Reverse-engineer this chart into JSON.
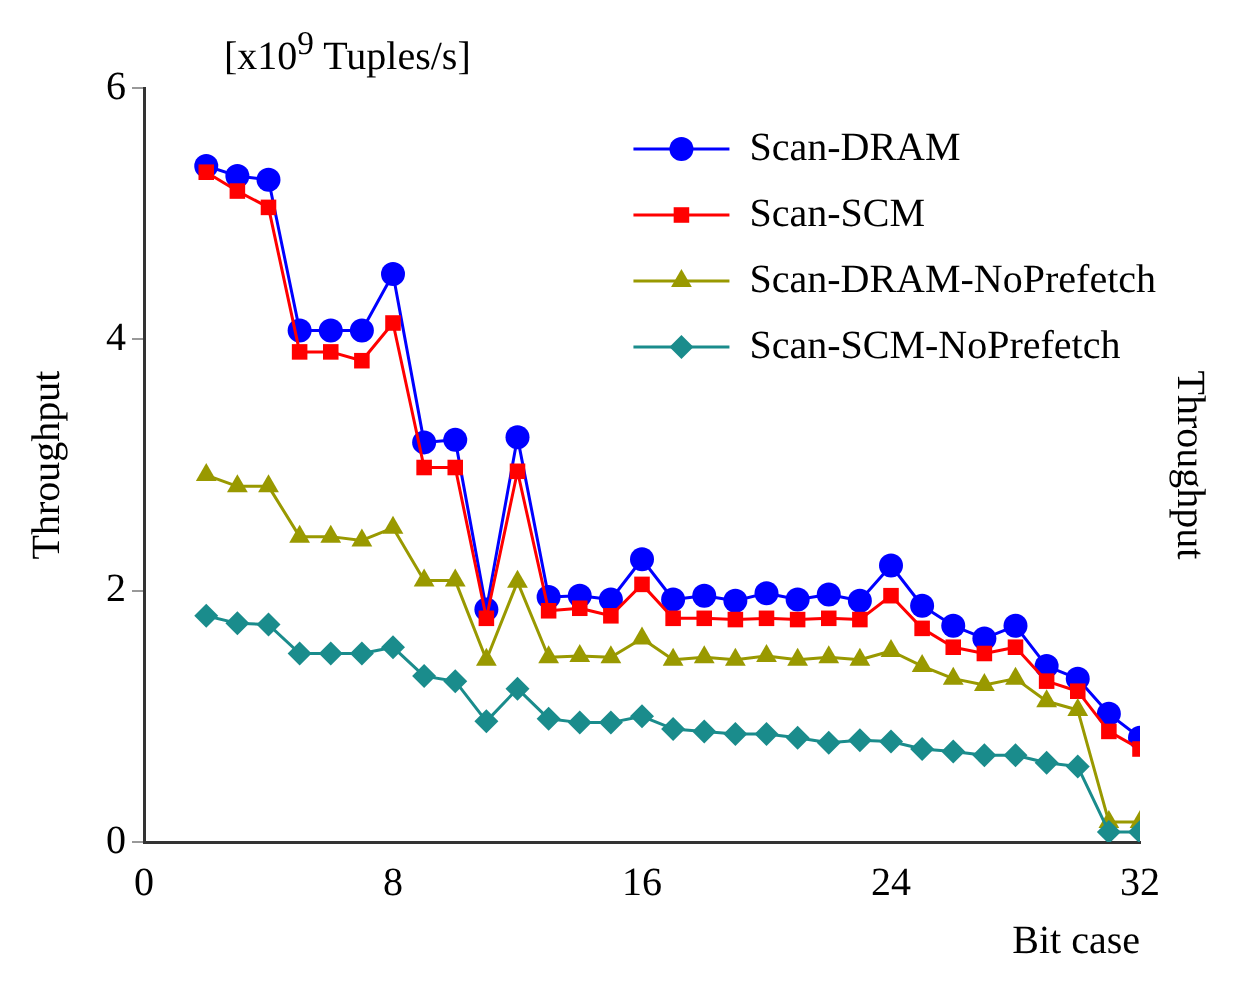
{
  "chart_data": {
    "type": "line",
    "xlabel": "Bit case",
    "ylabel": "Throughput",
    "y2label": "Throughput",
    "annotations": [
      "[x10$^{9}$ Tuples/s]"
    ],
    "x": [
      2,
      3,
      4,
      5,
      6,
      7,
      8,
      9,
      10,
      11,
      12,
      13,
      14,
      15,
      16,
      17,
      18,
      19,
      20,
      21,
      22,
      23,
      24,
      25,
      26,
      27,
      28,
      29,
      30,
      31,
      32
    ],
    "xlim": [
      0,
      32
    ],
    "xticks": [
      0,
      8,
      16,
      24,
      32
    ],
    "ylim": [
      0,
      6
    ],
    "yticks": [
      0,
      2,
      4,
      6
    ],
    "grid": false,
    "legend": "top right",
    "line_style": "solid",
    "series": [
      {
        "name": "Scan-DRAM",
        "color": "#0000ff",
        "marker": "circle",
        "values": [
          5.38,
          5.3,
          5.27,
          4.07,
          4.07,
          4.07,
          4.52,
          3.18,
          3.2,
          1.85,
          3.22,
          1.95,
          1.96,
          1.93,
          2.25,
          1.93,
          1.96,
          1.92,
          1.98,
          1.93,
          1.97,
          1.92,
          2.2,
          1.88,
          1.72,
          1.62,
          1.72,
          1.4,
          1.3,
          1.02,
          0.83
        ]
      },
      {
        "name": "Scan-SCM",
        "color": "#ff0000",
        "marker": "square",
        "values": [
          5.33,
          5.18,
          5.05,
          3.9,
          3.9,
          3.83,
          4.13,
          2.98,
          2.98,
          1.78,
          2.95,
          1.84,
          1.86,
          1.8,
          2.05,
          1.78,
          1.78,
          1.77,
          1.78,
          1.77,
          1.78,
          1.77,
          1.96,
          1.7,
          1.55,
          1.5,
          1.55,
          1.28,
          1.2,
          0.88,
          0.74
        ]
      },
      {
        "name": "Scan-DRAM-NoPrefetch",
        "color": "#999900",
        "marker": "triangle",
        "values": [
          2.92,
          2.83,
          2.83,
          2.43,
          2.43,
          2.4,
          2.5,
          2.08,
          2.08,
          1.45,
          2.07,
          1.47,
          1.48,
          1.47,
          1.62,
          1.45,
          1.47,
          1.45,
          1.48,
          1.45,
          1.47,
          1.45,
          1.52,
          1.4,
          1.3,
          1.25,
          1.3,
          1.12,
          1.05,
          0.16,
          0.16
        ]
      },
      {
        "name": "Scan-SCM-NoPrefetch",
        "color": "#1a8c8c",
        "marker": "diamond",
        "values": [
          1.8,
          1.74,
          1.73,
          1.5,
          1.5,
          1.5,
          1.55,
          1.32,
          1.28,
          0.96,
          1.22,
          0.98,
          0.95,
          0.95,
          1.0,
          0.9,
          0.88,
          0.86,
          0.86,
          0.83,
          0.79,
          0.81,
          0.8,
          0.74,
          0.72,
          0.69,
          0.69,
          0.63,
          0.6,
          0.08,
          0.08
        ]
      }
    ]
  }
}
